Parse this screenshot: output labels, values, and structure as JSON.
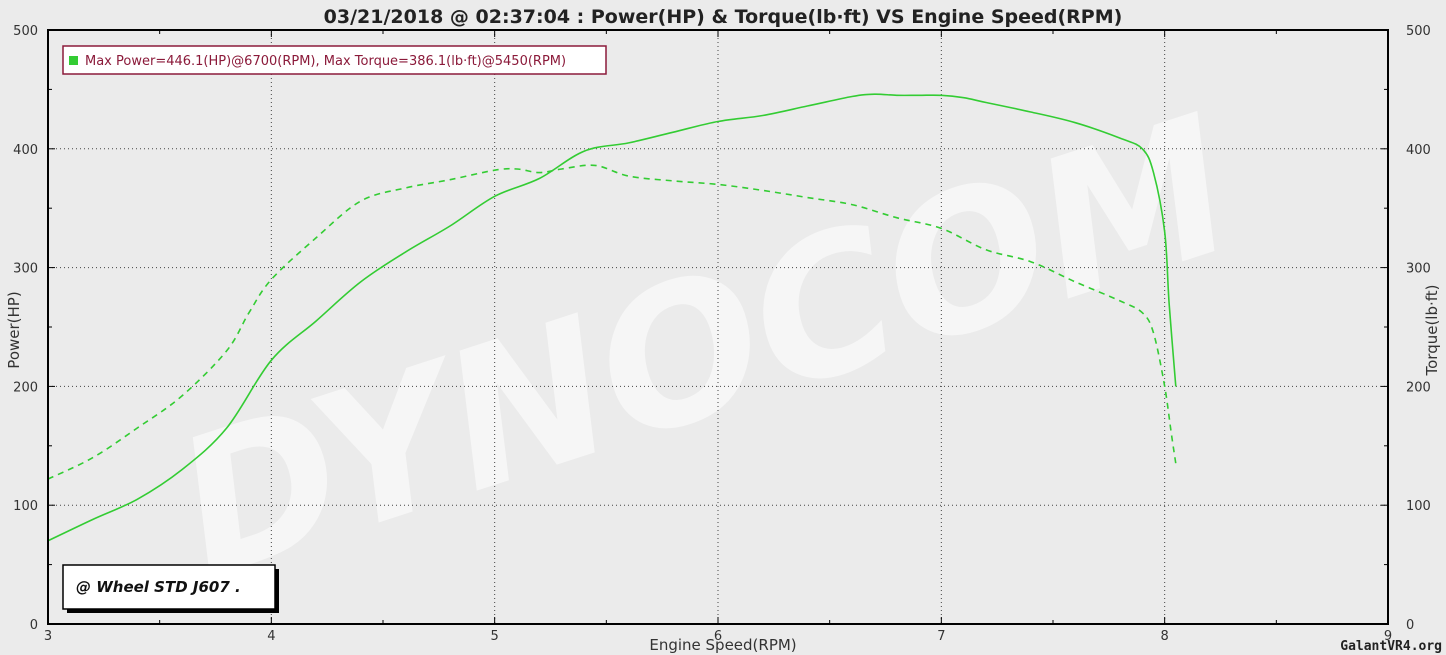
{
  "chart_data": {
    "type": "line",
    "title": "03/21/2018 @ 02:37:04 : Power(HP) & Torque(lb·ft) VS Engine Speed(RPM)",
    "xlabel": "Engine Speed(RPM)",
    "ylabel_left": "Power(HP)",
    "ylabel_right": "Torque(lb·ft)",
    "xlim": [
      3,
      9
    ],
    "ylim": [
      0,
      500
    ],
    "x_ticks": [
      "3",
      "4",
      "5",
      "6",
      "7",
      "8",
      "9"
    ],
    "y_ticks": [
      "0",
      "100",
      "200",
      "300",
      "400",
      "500"
    ],
    "grid": true,
    "legend": "Max Power=446.1(HP)@6700(RPM), Max Torque=386.1(lb·ft)@5450(RPM)",
    "condition_label": "@ Wheel STD J607  .",
    "watermark": "DYNOCOM",
    "credit": "GalantVR4.org",
    "colors": {
      "series": "#33cc33",
      "background": "#ebebeb",
      "legend_text": "#8b1a3a",
      "legend_border": "#8b1a3a"
    },
    "series": [
      {
        "name": "Power",
        "axis": "left",
        "style": "solid",
        "x": [
          3.0,
          3.2,
          3.4,
          3.6,
          3.8,
          4.0,
          4.2,
          4.4,
          4.6,
          4.8,
          5.0,
          5.2,
          5.4,
          5.6,
          5.8,
          6.0,
          6.2,
          6.4,
          6.6,
          6.7,
          6.8,
          6.9,
          7.0,
          7.1,
          7.2,
          7.4,
          7.6,
          7.8,
          7.9,
          7.95,
          8.0,
          8.02,
          8.05
        ],
        "values": [
          70,
          88,
          105,
          130,
          165,
          222,
          255,
          288,
          313,
          335,
          360,
          375,
          398,
          405,
          414,
          423,
          428,
          436,
          444,
          446,
          445,
          445,
          445,
          443,
          439,
          431,
          422,
          409,
          400,
          380,
          330,
          270,
          200
        ]
      },
      {
        "name": "Torque",
        "axis": "right",
        "style": "dashed",
        "x": [
          3.0,
          3.2,
          3.4,
          3.6,
          3.8,
          3.9,
          4.0,
          4.2,
          4.4,
          4.6,
          4.8,
          5.0,
          5.1,
          5.2,
          5.3,
          5.45,
          5.6,
          5.8,
          6.0,
          6.2,
          6.4,
          6.6,
          6.8,
          7.0,
          7.2,
          7.4,
          7.6,
          7.8,
          7.9,
          7.95,
          8.0,
          8.03,
          8.05
        ],
        "values": [
          122,
          140,
          165,
          192,
          230,
          262,
          290,
          325,
          356,
          367,
          374,
          382,
          383,
          380,
          383,
          386,
          377,
          373,
          370,
          365,
          359,
          353,
          342,
          333,
          315,
          305,
          288,
          272,
          262,
          245,
          200,
          160,
          135
        ]
      }
    ]
  }
}
